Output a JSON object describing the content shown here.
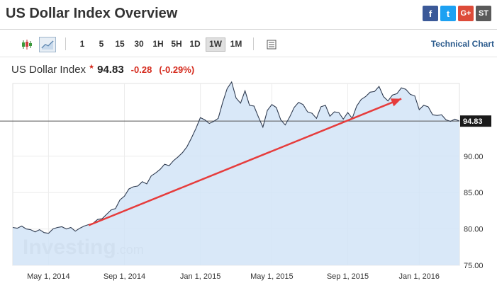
{
  "header": {
    "title": "US Dollar Index Overview"
  },
  "social": {
    "facebook": {
      "label": "f",
      "icon": "facebook-icon"
    },
    "twitter": {
      "label": "t",
      "icon": "twitter-icon"
    },
    "googleplus": {
      "label": "G+",
      "icon": "google-plus-icon"
    },
    "stocktwits": {
      "label": "ST",
      "icon": "stocktwits-icon"
    }
  },
  "toolbar": {
    "timeframes": [
      "1",
      "5",
      "15",
      "30",
      "1H",
      "5H",
      "1D",
      "1W",
      "1M"
    ],
    "active_timeframe": "1W",
    "technical_link": "Technical Chart"
  },
  "quote": {
    "name": "US Dollar Index",
    "price": "94.83",
    "change": "-0.28",
    "change_pct": "(-0.29%)"
  },
  "chart_data": {
    "type": "area",
    "x": [
      "2014-03",
      "2014-03",
      "2014-03",
      "2014-04",
      "2014-04",
      "2014-04",
      "2014-04",
      "2014-05",
      "2014-05",
      "2014-05",
      "2014-05",
      "2014-06",
      "2014-06",
      "2014-06",
      "2014-06",
      "2014-07",
      "2014-07",
      "2014-07",
      "2014-07",
      "2014-08",
      "2014-08",
      "2014-08",
      "2014-08",
      "2014-09",
      "2014-09",
      "2014-09",
      "2014-09",
      "2014-10",
      "2014-10",
      "2014-10",
      "2014-10",
      "2014-11",
      "2014-11",
      "2014-11",
      "2014-11",
      "2014-12",
      "2014-12",
      "2014-12",
      "2014-12",
      "2015-01",
      "2015-01",
      "2015-01",
      "2015-01",
      "2015-02",
      "2015-02",
      "2015-02",
      "2015-02",
      "2015-03",
      "2015-03",
      "2015-03",
      "2015-03",
      "2015-04",
      "2015-04",
      "2015-04",
      "2015-04",
      "2015-05",
      "2015-05",
      "2015-05",
      "2015-05",
      "2015-06",
      "2015-06",
      "2015-06",
      "2015-06",
      "2015-07",
      "2015-07",
      "2015-07",
      "2015-07",
      "2015-08",
      "2015-08",
      "2015-08",
      "2015-08",
      "2015-09",
      "2015-09",
      "2015-09",
      "2015-09",
      "2015-10",
      "2015-10",
      "2015-10",
      "2015-10",
      "2015-11",
      "2015-11",
      "2015-11",
      "2015-11",
      "2015-12",
      "2015-12",
      "2015-12",
      "2015-12",
      "2016-01",
      "2016-01",
      "2016-01",
      "2016-01",
      "2016-02",
      "2016-02",
      "2016-02",
      "2016-02",
      "2016-03",
      "2016-03",
      "2016-03",
      "2016-03",
      "2016-04",
      "2016-04"
    ],
    "values": [
      80.2,
      80.1,
      80.4,
      80.0,
      79.9,
      79.6,
      79.9,
      79.5,
      79.4,
      80.0,
      80.2,
      80.3,
      80.0,
      80.2,
      79.7,
      80.1,
      80.4,
      80.6,
      80.8,
      81.3,
      81.4,
      82.0,
      82.6,
      82.8,
      84.0,
      84.5,
      85.5,
      85.8,
      85.9,
      86.5,
      86.2,
      87.3,
      87.7,
      88.2,
      88.9,
      88.7,
      89.4,
      89.9,
      90.5,
      91.3,
      92.5,
      93.8,
      95.3,
      95.0,
      94.5,
      94.8,
      95.2,
      97.4,
      99.3,
      100.2,
      98.0,
      97.3,
      99.0,
      97.0,
      96.9,
      95.4,
      94.0,
      96.3,
      97.1,
      96.7,
      95.0,
      94.3,
      95.4,
      96.7,
      97.4,
      97.1,
      96.1,
      95.9,
      95.2,
      96.8,
      97.0,
      95.5,
      96.1,
      96.0,
      95.1,
      96.0,
      95.2,
      96.9,
      97.8,
      98.2,
      98.8,
      98.9,
      99.6,
      98.2,
      97.6,
      98.4,
      98.6,
      99.4,
      99.2,
      98.5,
      98.3,
      96.4,
      97.0,
      96.8,
      95.7,
      95.6,
      95.7,
      95.0,
      94.8,
      95.1,
      94.83
    ],
    "y_range": [
      75,
      100
    ],
    "y_ticks": [
      "75.00",
      "80.00",
      "85.00",
      "90.00",
      "94.83"
    ],
    "x_tick_labels": [
      "May 1, 2014",
      "Sep 1, 2014",
      "Jan 1, 2015",
      "May 1, 2015",
      "Sep 1, 2015",
      "Jan 1, 2016"
    ],
    "last_value_label": "94.83",
    "watermark": "Investing.com",
    "annotation_arrow": {
      "from_index": 17,
      "to_index": 87,
      "from_value": 80.5,
      "to_value": 97.9
    },
    "colors": {
      "line": "#2f3b50",
      "fill": "#d2e4f7",
      "arrow": "#e63c3c",
      "price_line": "#555555",
      "label_bg": "#1a1a1a"
    }
  }
}
